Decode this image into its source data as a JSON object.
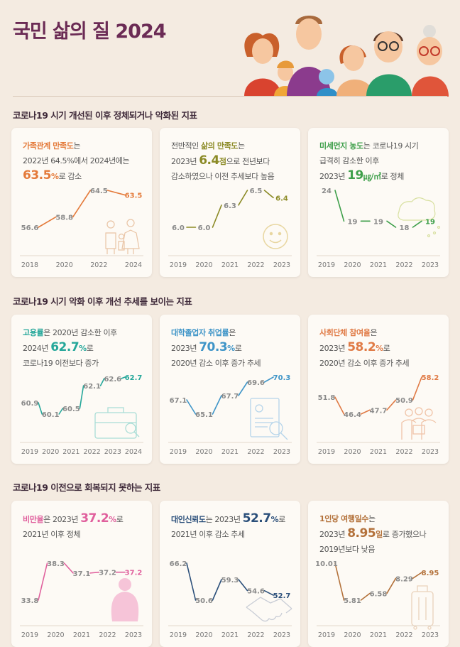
{
  "page_title": "국민 삶의 질 2024",
  "sections": [
    "코로나19 시기 개선된 이후 정체되거나 악화된 지표",
    "코로나19 시기 악화 이후 개선 추세를 보이는 지표",
    "코로나19 이전으로 회복되지 못하는 지표"
  ],
  "colors": {
    "title": "#6b2b55",
    "orange": "#e47a3a",
    "olive": "#8b8a25",
    "green": "#3e9f4a",
    "teal": "#25a79a",
    "blue": "#3f95c8",
    "coral": "#e07a45",
    "pink": "#e0609d",
    "navy": "#2b4f7a",
    "brown": "#b3713a"
  },
  "cards": [
    {
      "id": "family",
      "desc": {
        "l1_hl": "가족관계 만족도",
        "l1_rest": "는",
        "l2": "2022년 64.5%에서 2024년에는",
        "big": "63.5",
        "unit": "%",
        "after": "로 감소"
      }
    },
    {
      "id": "life",
      "desc": {
        "l1_pre": "전반적인 ",
        "l1_hl": "삶의 만족도",
        "l1_rest": "는",
        "l2_pre": "2023년 ",
        "big": "6.4",
        "unit": "점",
        "after": "으로 전년보다",
        "l3": "감소하였으나 이전 추세보다 높음"
      }
    },
    {
      "id": "dust",
      "desc": {
        "l1_hl": "미세먼지 농도",
        "l1_rest": "는 코로나19 시기",
        "l2": "급격히 감소한 이후",
        "l3_pre": "2023년 ",
        "big": "19",
        "unit": "㎍/㎥",
        "after": "로 정체"
      }
    },
    {
      "id": "employ",
      "desc": {
        "l1_hl": "고용률",
        "l1_rest": "은 2020년 감소한 이후",
        "l2_pre": "2024년 ",
        "big": "62.7",
        "unit": "%",
        "after": "로",
        "l3": "코로나19 이전보다 증가"
      }
    },
    {
      "id": "grad",
      "desc": {
        "l1_hl": "대학졸업자 취업률",
        "l1_rest": "은",
        "l2_pre": "2023년 ",
        "big": "70.3",
        "unit": "%",
        "after": "로",
        "l3": "2020년 감소 이후 증가 추세"
      }
    },
    {
      "id": "social",
      "desc": {
        "l1_hl": "사회단체 참여율",
        "l1_rest": "은",
        "l2_pre": "2023년 ",
        "big": "58.2",
        "unit": "%",
        "after": "로",
        "l3": "2020년 감소 이후 증가 추세"
      }
    },
    {
      "id": "obesity",
      "desc": {
        "l1_hl": "비만율",
        "l1_rest": "은 2023년 ",
        "big": "37.2",
        "unit": "%",
        "after": "로",
        "l2": "2021년 이후 정체"
      }
    },
    {
      "id": "trust",
      "desc": {
        "l1_hl": "대인신뢰도",
        "l1_rest": "는 2023년 ",
        "big": "52.7",
        "unit": "%",
        "after": "로",
        "l2": "2021년 이후 감소 추세"
      }
    },
    {
      "id": "travel",
      "desc": {
        "l1_hl": "1인당 여행일수",
        "l1_rest": "는",
        "l2_pre": "2023년 ",
        "big": "8.95",
        "unit": "일",
        "after": "로 증가했으나",
        "l3": "2019년보다 낮음"
      }
    }
  ],
  "chart_data": [
    {
      "type": "line",
      "name_ref": "family",
      "x": [
        "2018",
        "2020",
        "2022",
        "2024"
      ],
      "values": [
        56.6,
        58.8,
        64.5,
        63.5
      ],
      "labels": [
        "56.6",
        "58.8",
        "64.5",
        "63.5"
      ],
      "color": "#e47a3a"
    },
    {
      "type": "line",
      "name_ref": "life",
      "x": [
        "2019",
        "2020",
        "2021",
        "2022",
        "2023"
      ],
      "values": [
        6.0,
        6.0,
        6.3,
        6.5,
        6.4
      ],
      "labels": [
        "6.0",
        "6.0",
        "6.3",
        "6.5",
        "6.4"
      ],
      "color": "#8b8a25"
    },
    {
      "type": "line",
      "name_ref": "dust",
      "x": [
        "2019",
        "2020",
        "2021",
        "2022",
        "2023"
      ],
      "values": [
        24,
        19,
        19,
        18,
        19
      ],
      "labels": [
        "24",
        "19",
        "19",
        "18",
        "19"
      ],
      "color": "#3e9f4a"
    },
    {
      "type": "line",
      "name_ref": "employ",
      "x": [
        "2019",
        "2020",
        "2021",
        "2022",
        "2023",
        "2024"
      ],
      "values": [
        60.9,
        60.1,
        60.5,
        62.1,
        62.6,
        62.7
      ],
      "labels": [
        "60.9",
        "60.1",
        "60.5",
        "62.1",
        "62.6",
        "62.7"
      ],
      "color": "#25a79a"
    },
    {
      "type": "line",
      "name_ref": "grad",
      "x": [
        "2019",
        "2020",
        "2021",
        "2022",
        "2023"
      ],
      "values": [
        67.1,
        65.1,
        67.7,
        69.6,
        70.3
      ],
      "labels": [
        "67.1",
        "65.1",
        "67.7",
        "69.6",
        "70.3"
      ],
      "color": "#3f95c8"
    },
    {
      "type": "line",
      "name_ref": "social",
      "x": [
        "2019",
        "2020",
        "2021",
        "2022",
        "2023"
      ],
      "values": [
        51.8,
        46.4,
        47.7,
        50.9,
        58.2
      ],
      "labels": [
        "51.8",
        "46.4",
        "47.7",
        "50.9",
        "58.2"
      ],
      "color": "#e07a45"
    },
    {
      "type": "line",
      "name_ref": "obesity",
      "x": [
        "2019",
        "2020",
        "2021",
        "2022",
        "2023"
      ],
      "values": [
        33.8,
        38.3,
        37.1,
        37.2,
        37.2
      ],
      "labels": [
        "33.8",
        "38.3",
        "37.1",
        "37.2",
        "37.2"
      ],
      "color": "#e0609d"
    },
    {
      "type": "line",
      "name_ref": "trust",
      "x": [
        "2019",
        "2020",
        "2021",
        "2022",
        "2023"
      ],
      "values": [
        66.2,
        50.6,
        59.3,
        54.6,
        52.7
      ],
      "labels": [
        "66.2",
        "50.6",
        "59.3",
        "54.6",
        "52.7"
      ],
      "color": "#2b4f7a"
    },
    {
      "type": "line",
      "name_ref": "travel",
      "x": [
        "2019",
        "2020",
        "2021",
        "2022",
        "2023"
      ],
      "values": [
        10.01,
        5.81,
        6.58,
        8.29,
        8.95
      ],
      "labels": [
        "10.01",
        "5.81",
        "6.58",
        "8.29",
        "8.95"
      ],
      "color": "#b3713a"
    }
  ]
}
